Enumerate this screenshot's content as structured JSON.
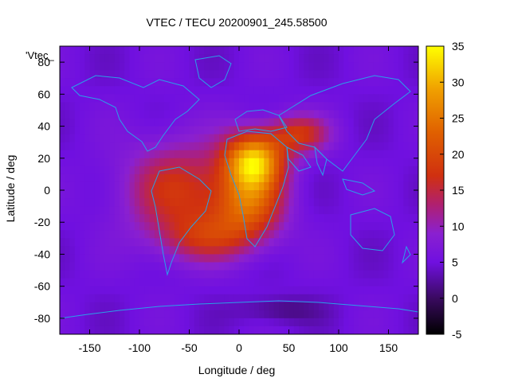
{
  "chart_data": {
    "type": "heatmap",
    "title": "VTEC / TECU 20200901_245.58500",
    "xlabel": "Longitude / deg",
    "ylabel": "Latitude / deg",
    "xlim": [
      -180,
      180
    ],
    "ylim": [
      -90,
      90
    ],
    "xticks": [
      -150,
      -100,
      -50,
      0,
      50,
      100,
      150
    ],
    "yticks": [
      -80,
      -60,
      -40,
      -20,
      0,
      20,
      40,
      60,
      80
    ],
    "colorbar": {
      "min": -5,
      "max": 35,
      "ticks": [
        -5,
        0,
        5,
        10,
        15,
        20,
        25,
        30,
        35
      ]
    },
    "legend_key": "'Vtec_",
    "background_level": 5,
    "features": [
      {
        "name": "equatorial-anomaly-americas",
        "lon": -60,
        "lat": 0,
        "peak": 17,
        "spread_lon": 55,
        "spread_lat": 30
      },
      {
        "name": "peak-africa",
        "lon": 15,
        "lat": 18,
        "peak": 31,
        "spread_lon": 30,
        "spread_lat": 18
      },
      {
        "name": "africa-south",
        "lon": 10,
        "lat": -10,
        "peak": 20,
        "spread_lon": 35,
        "spread_lat": 20
      },
      {
        "name": "middle-east",
        "lon": 60,
        "lat": 35,
        "peak": 17,
        "spread_lon": 30,
        "spread_lat": 12
      },
      {
        "name": "southern-atlantic",
        "lon": -30,
        "lat": -30,
        "peak": 14,
        "spread_lon": 50,
        "spread_lat": 15
      },
      {
        "name": "antarctic-low",
        "lon": 40,
        "lat": -75,
        "peak": 1,
        "spread_lon": 40,
        "spread_lat": 8
      }
    ]
  }
}
